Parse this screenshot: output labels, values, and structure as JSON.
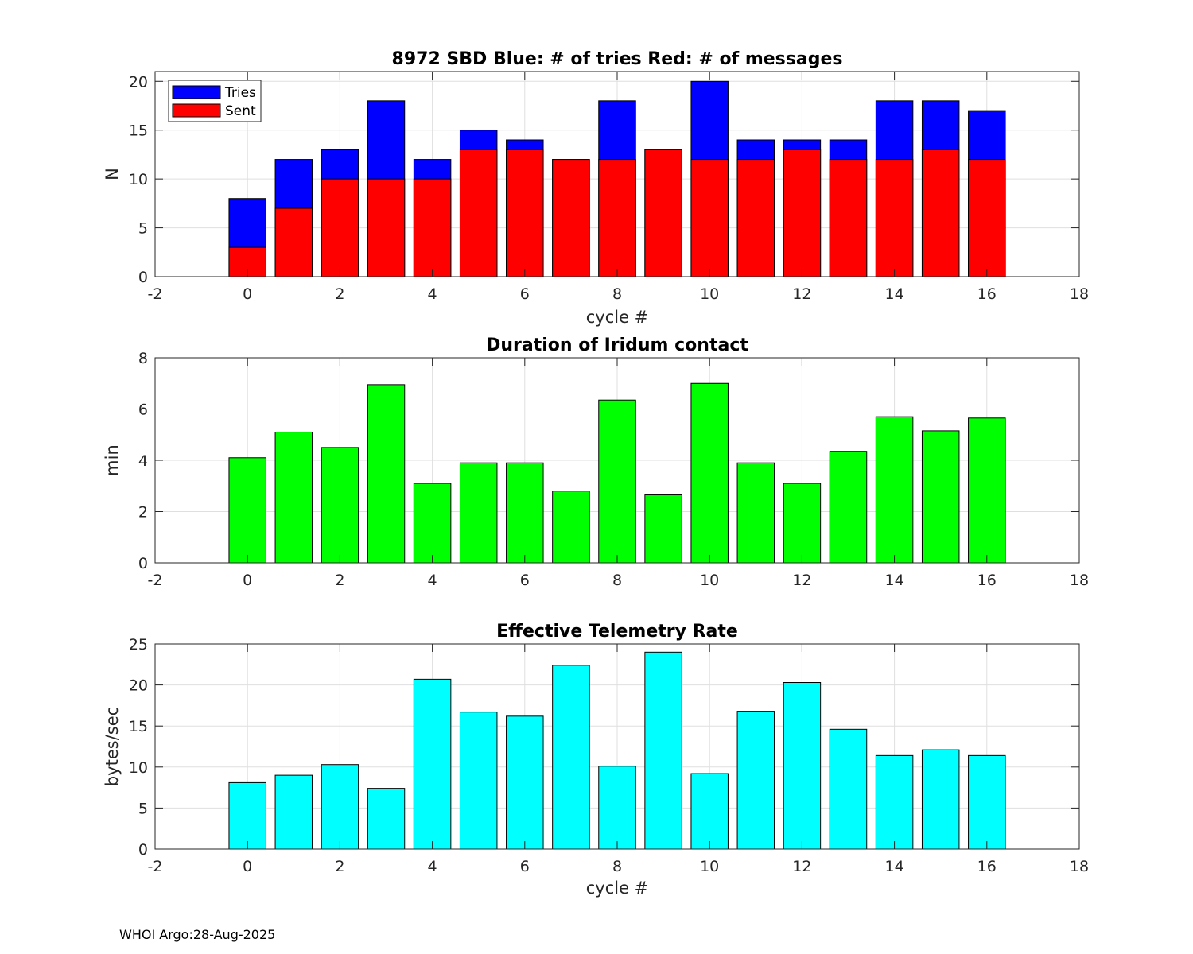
{
  "footer": "WHOI Argo:28-Aug-2025",
  "chart_data": [
    {
      "type": "bar",
      "subtype": "overlaid",
      "title": "8972 SBD  Blue: # of tries   Red: # of messages",
      "xlabel": "cycle #",
      "ylabel": "N",
      "xlim": [
        -2,
        18
      ],
      "ylim": [
        0,
        21
      ],
      "xticks": [
        -2,
        0,
        2,
        4,
        6,
        8,
        10,
        12,
        14,
        16,
        18
      ],
      "yticks": [
        0,
        5,
        10,
        15,
        20
      ],
      "grid": true,
      "legend_position": "top-left",
      "x": [
        0,
        1,
        2,
        3,
        4,
        5,
        6,
        7,
        8,
        9,
        10,
        11,
        12,
        13,
        14,
        15,
        16
      ],
      "series": [
        {
          "name": "Tries",
          "color": "#0000ff",
          "values": [
            8,
            12,
            13,
            18,
            12,
            15,
            14,
            12,
            18,
            13,
            20,
            14,
            14,
            14,
            18,
            18,
            17
          ]
        },
        {
          "name": "Sent",
          "color": "#ff0000",
          "values": [
            3,
            7,
            10,
            10,
            10,
            13,
            13,
            12,
            12,
            13,
            12,
            12,
            13,
            12,
            12,
            13,
            12
          ]
        }
      ]
    },
    {
      "type": "bar",
      "title": "Duration of Iridum contact",
      "xlabel": "",
      "ylabel": "min",
      "xlim": [
        -2,
        18
      ],
      "ylim": [
        0,
        8
      ],
      "xticks": [
        -2,
        0,
        2,
        4,
        6,
        8,
        10,
        12,
        14,
        16,
        18
      ],
      "yticks": [
        0,
        2,
        4,
        6,
        8
      ],
      "grid": true,
      "x": [
        0,
        1,
        2,
        3,
        4,
        5,
        6,
        7,
        8,
        9,
        10,
        11,
        12,
        13,
        14,
        15,
        16
      ],
      "series": [
        {
          "name": "Duration",
          "color": "#00ff00",
          "values": [
            4.1,
            5.1,
            4.5,
            6.95,
            3.1,
            3.9,
            3.9,
            2.8,
            6.35,
            2.65,
            7.0,
            3.9,
            3.1,
            4.35,
            5.7,
            5.15,
            5.65
          ]
        }
      ]
    },
    {
      "type": "bar",
      "title": "Effective Telemetry Rate",
      "xlabel": "cycle #",
      "ylabel": "bytes/sec",
      "xlim": [
        -2,
        18
      ],
      "ylim": [
        0,
        25
      ],
      "xticks": [
        -2,
        0,
        2,
        4,
        6,
        8,
        10,
        12,
        14,
        16,
        18
      ],
      "yticks": [
        0,
        5,
        10,
        15,
        20,
        25
      ],
      "grid": true,
      "x": [
        0,
        1,
        2,
        3,
        4,
        5,
        6,
        7,
        8,
        9,
        10,
        11,
        12,
        13,
        14,
        15,
        16
      ],
      "series": [
        {
          "name": "Rate",
          "color": "#00ffff",
          "values": [
            8.1,
            9.0,
            10.3,
            7.4,
            20.7,
            16.7,
            16.2,
            22.4,
            10.1,
            24.0,
            9.2,
            16.8,
            20.3,
            14.6,
            11.4,
            12.1,
            11.4
          ]
        }
      ]
    }
  ]
}
